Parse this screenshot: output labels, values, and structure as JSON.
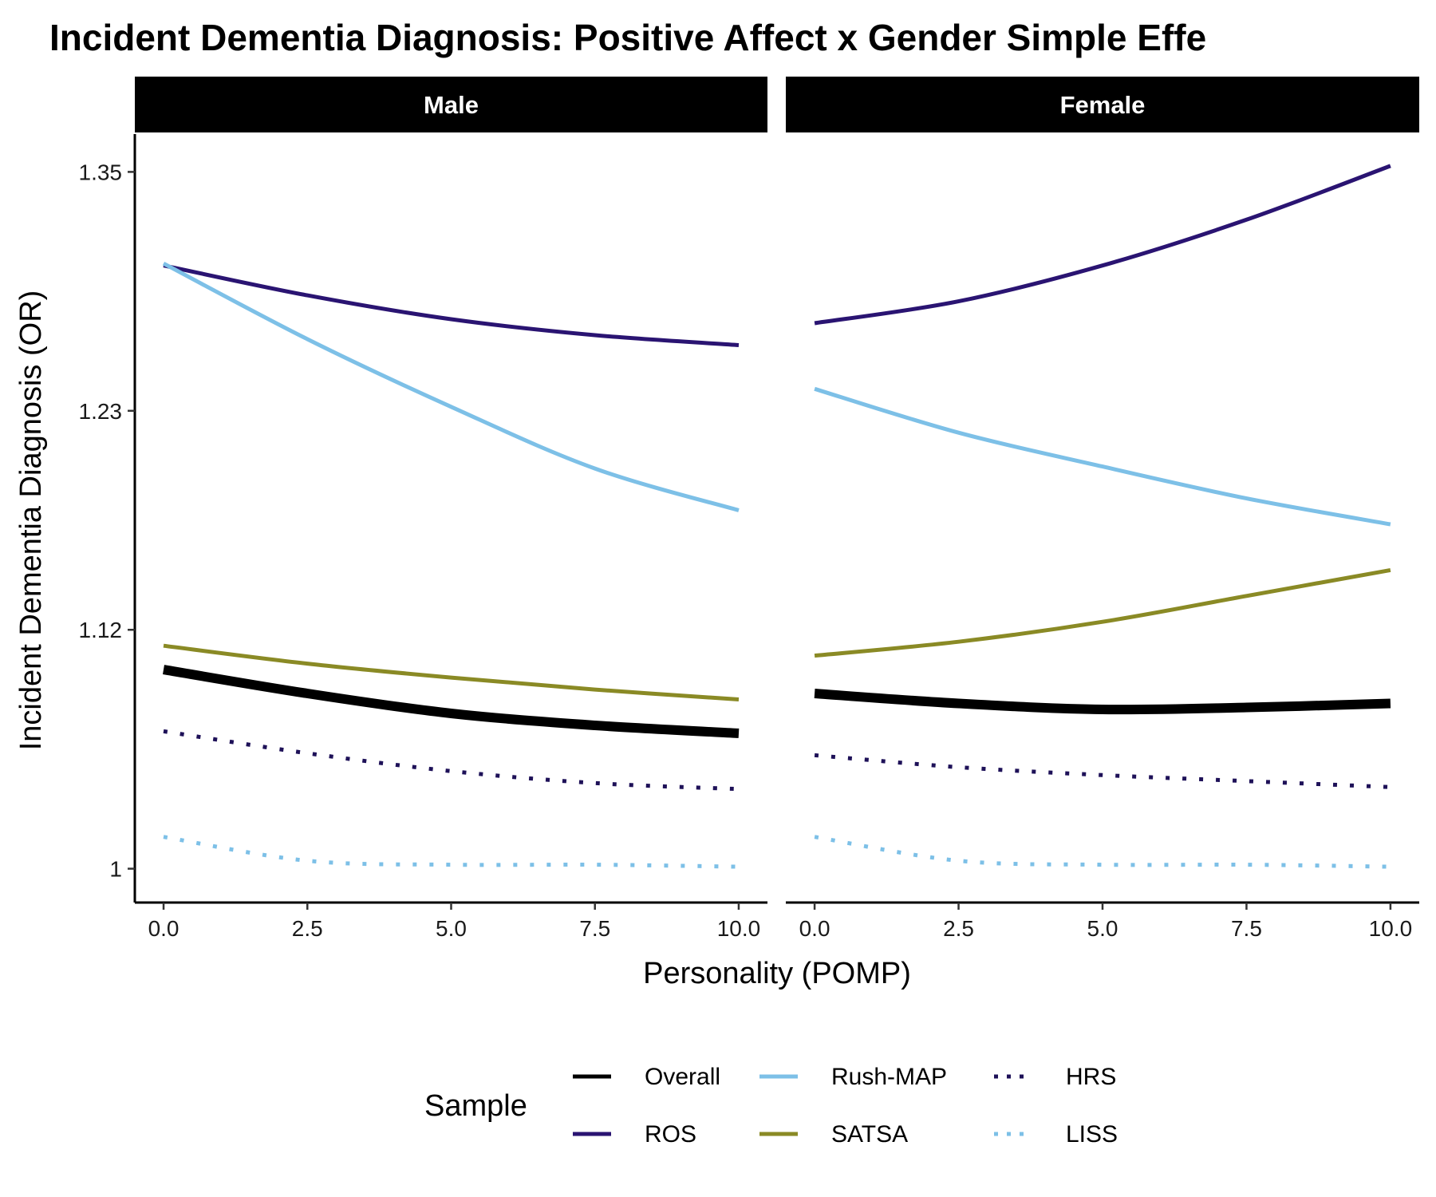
{
  "chart_data": {
    "type": "line",
    "title": "Incident Dementia Diagnosis: Positive Affect x Gender Simple Effe",
    "xlabel": "Personality (POMP)",
    "ylabel": "Incident Dementia Diagnosis (OR)",
    "xlim": [
      -0.5,
      10.5
    ],
    "ylim": [
      0.983,
      1.369
    ],
    "x_ticks": [
      0,
      2.5,
      5,
      7.5,
      10
    ],
    "x_tick_labels": [
      "0.0",
      "2.5",
      "5.0",
      "7.5",
      "10.0"
    ],
    "y_ticks": [
      1,
      1.12,
      1.23,
      1.35
    ],
    "y_tick_labels": [
      "1",
      "1.12",
      "1.23",
      "1.35"
    ],
    "x": [
      0,
      2.5,
      5,
      7.5,
      10
    ],
    "legend": {
      "title": "Sample",
      "position": "bottom"
    },
    "grid": false,
    "facets": [
      {
        "label": "Male",
        "series": [
          {
            "name": "Overall",
            "values": [
              1.1,
              1.088,
              1.078,
              1.072,
              1.068
            ]
          },
          {
            "name": "ROS",
            "values": [
              1.303,
              1.288,
              1.276,
              1.268,
              1.263
            ]
          },
          {
            "name": "Rush-MAP",
            "values": [
              1.304,
              1.266,
              1.232,
              1.201,
              1.18
            ]
          },
          {
            "name": "SATSA",
            "values": [
              1.112,
              1.103,
              1.096,
              1.09,
              1.085
            ]
          },
          {
            "name": "HRS",
            "values": [
              1.069,
              1.058,
              1.049,
              1.043,
              1.04
            ]
          },
          {
            "name": "LISS",
            "values": [
              1.016,
              1.004,
              1.002,
              1.002,
              1.001
            ]
          }
        ]
      },
      {
        "label": "Female",
        "series": [
          {
            "name": "Overall",
            "values": [
              1.088,
              1.083,
              1.08,
              1.081,
              1.083
            ]
          },
          {
            "name": "ROS",
            "values": [
              1.274,
              1.285,
              1.303,
              1.326,
              1.353
            ]
          },
          {
            "name": "Rush-MAP",
            "values": [
              1.241,
              1.219,
              1.202,
              1.186,
              1.173
            ]
          },
          {
            "name": "SATSA",
            "values": [
              1.107,
              1.114,
              1.124,
              1.137,
              1.15
            ]
          },
          {
            "name": "HRS",
            "values": [
              1.057,
              1.051,
              1.047,
              1.044,
              1.041
            ]
          },
          {
            "name": "LISS",
            "values": [
              1.016,
              1.004,
              1.002,
              1.002,
              1.001
            ]
          }
        ]
      }
    ],
    "series_styles": [
      {
        "name": "Overall",
        "color": "#000000",
        "dash": "solid",
        "weight": "thick"
      },
      {
        "name": "ROS",
        "color": "#2A1472",
        "dash": "solid",
        "weight": "normal"
      },
      {
        "name": "Rush-MAP",
        "color": "#7DC0E7",
        "dash": "solid",
        "weight": "normal"
      },
      {
        "name": "SATSA",
        "color": "#8A8A25",
        "dash": "solid",
        "weight": "normal"
      },
      {
        "name": "HRS",
        "color": "#1E1158",
        "dash": "dotted",
        "weight": "normal"
      },
      {
        "name": "LISS",
        "color": "#7DC0E7",
        "dash": "dotted",
        "weight": "normal"
      }
    ]
  }
}
